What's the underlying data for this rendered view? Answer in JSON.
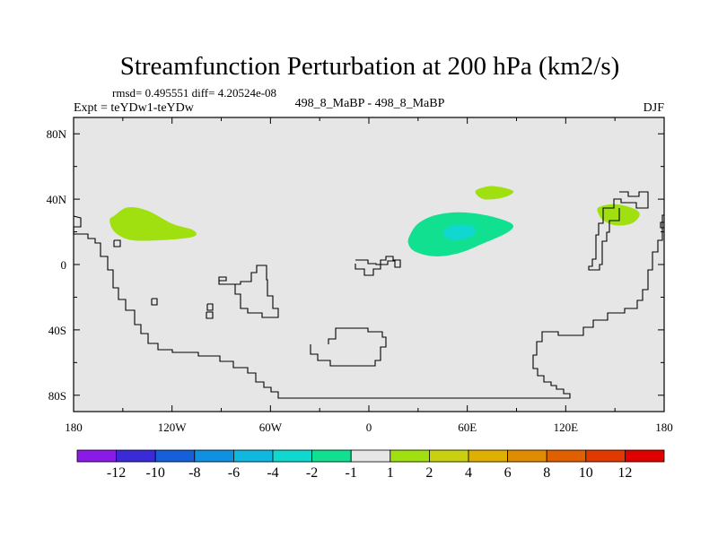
{
  "chart_data": {
    "type": "heatmap",
    "title": "Streamfunction Perturbation at 200 hPa (km2/s)",
    "stats_line": "rmsd= 0.495551 diff= 4.20524e-08",
    "left_label": "Expt = teYDw1-teYDw",
    "center_label": "498_8_MaBP - 498_8_MaBP",
    "right_label": "DJF",
    "x_axis": {
      "range": [
        -180,
        180
      ],
      "ticks": [
        {
          "value": -180,
          "label": "180"
        },
        {
          "value": -120,
          "label": "120W"
        },
        {
          "value": -60,
          "label": "60W"
        },
        {
          "value": 0,
          "label": "0"
        },
        {
          "value": 60,
          "label": "60E"
        },
        {
          "value": 120,
          "label": "120E"
        },
        {
          "value": 180,
          "label": "180"
        }
      ]
    },
    "y_axis": {
      "range": [
        -90,
        90
      ],
      "ticks": [
        {
          "value": 80,
          "label": "80N"
        },
        {
          "value": 40,
          "label": "40N"
        },
        {
          "value": 0,
          "label": "0"
        },
        {
          "value": -40,
          "label": "40S"
        },
        {
          "value": -80,
          "label": "80S"
        }
      ]
    },
    "colorbar": {
      "colors": [
        "#8a1ae6",
        "#3a2ad8",
        "#1560d8",
        "#0f90e0",
        "#10b8e0",
        "#10d8d0",
        "#10e090",
        "#e6e6e6",
        "#a0e010",
        "#c8d010",
        "#e0b000",
        "#e08c00",
        "#e06000",
        "#e03a00",
        "#e00000"
      ],
      "labels": [
        "-12",
        "-10",
        "-8",
        "-6",
        "-4",
        "-2",
        "-1",
        "1",
        "2",
        "4",
        "6",
        "8",
        "10",
        "12"
      ]
    },
    "background_color": "#e6e6e6",
    "contours": [
      {
        "name": "positive-anomaly-north-pacific",
        "level_label": "2",
        "color": "#a0e010",
        "outline": [
          [
            -155,
            30
          ],
          [
            -147,
            35
          ],
          [
            -135,
            33
          ],
          [
            -120,
            25
          ],
          [
            -107,
            21
          ],
          [
            -107,
            17
          ],
          [
            -125,
            15
          ],
          [
            -145,
            15
          ],
          [
            -155,
            20
          ],
          [
            -158,
            27
          ]
        ]
      },
      {
        "name": "negative-anomaly-middle-east",
        "level_label": "-1",
        "color": "#10e090",
        "outline": [
          [
            25,
            18
          ],
          [
            30,
            25
          ],
          [
            40,
            30
          ],
          [
            55,
            32
          ],
          [
            72,
            30
          ],
          [
            87,
            25
          ],
          [
            85,
            20
          ],
          [
            70,
            13
          ],
          [
            55,
            7
          ],
          [
            40,
            5
          ],
          [
            28,
            8
          ],
          [
            24,
            13
          ]
        ]
      },
      {
        "name": "negative-anomaly-core-middle-east",
        "level_label": "-2",
        "color": "#10d8d0",
        "outline": [
          [
            45,
            20
          ],
          [
            52,
            24
          ],
          [
            62,
            24
          ],
          [
            65,
            20
          ],
          [
            60,
            16
          ],
          [
            50,
            15
          ]
        ]
      },
      {
        "name": "positive-anomaly-central-asia",
        "level_label": "2",
        "color": "#a0e010",
        "outline": [
          [
            65,
            45
          ],
          [
            75,
            48
          ],
          [
            88,
            45
          ],
          [
            82,
            41
          ],
          [
            70,
            40
          ]
        ]
      },
      {
        "name": "positive-anomaly-east-asia",
        "level_label": "2",
        "color": "#a0e010",
        "outline": [
          [
            140,
            35
          ],
          [
            150,
            37
          ],
          [
            162,
            34
          ],
          [
            165,
            30
          ],
          [
            160,
            25
          ],
          [
            150,
            24
          ],
          [
            143,
            27
          ],
          [
            140,
            31
          ]
        ]
      }
    ]
  }
}
